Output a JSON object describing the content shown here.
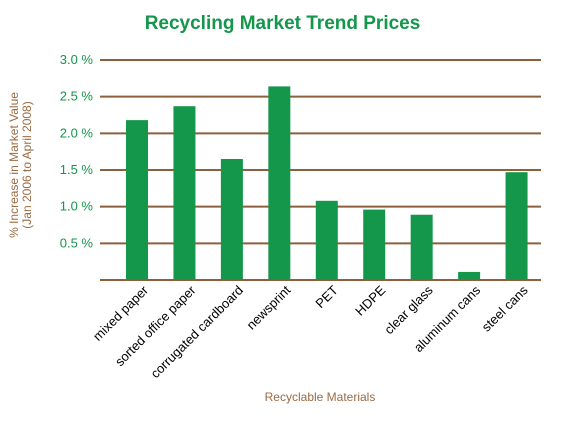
{
  "chart_data": {
    "type": "bar",
    "title": "Recycling Market Trend Prices",
    "xlabel": "Recyclable Materials",
    "ylabel_lines": [
      "% Increase in Market Value",
      "(Jan 2006 to April 2008)"
    ],
    "categories": [
      "mixed paper",
      "sorted office paper",
      "corrugated cardboard",
      "newsprint",
      "PET",
      "HDPE",
      "clear glass",
      "aluminum cans",
      "steel cans"
    ],
    "values": [
      2.18,
      2.37,
      1.65,
      2.64,
      1.08,
      0.96,
      0.89,
      0.11,
      1.47
    ],
    "yticks": [
      0.5,
      1.0,
      1.5,
      2.0,
      2.5,
      3.0
    ],
    "ytick_labels": [
      "0.5 %",
      "1.0 %",
      "1.5 %",
      "2.0 %",
      "2.5 %",
      "3.0 %"
    ],
    "ylim": [
      0,
      3.0
    ],
    "grid": true,
    "colors": {
      "bar": "#14964b",
      "title": "#14964b",
      "tick_label": "#14964b",
      "axis_label": "#9a6a42",
      "gridline": "#8c5f3e"
    }
  }
}
